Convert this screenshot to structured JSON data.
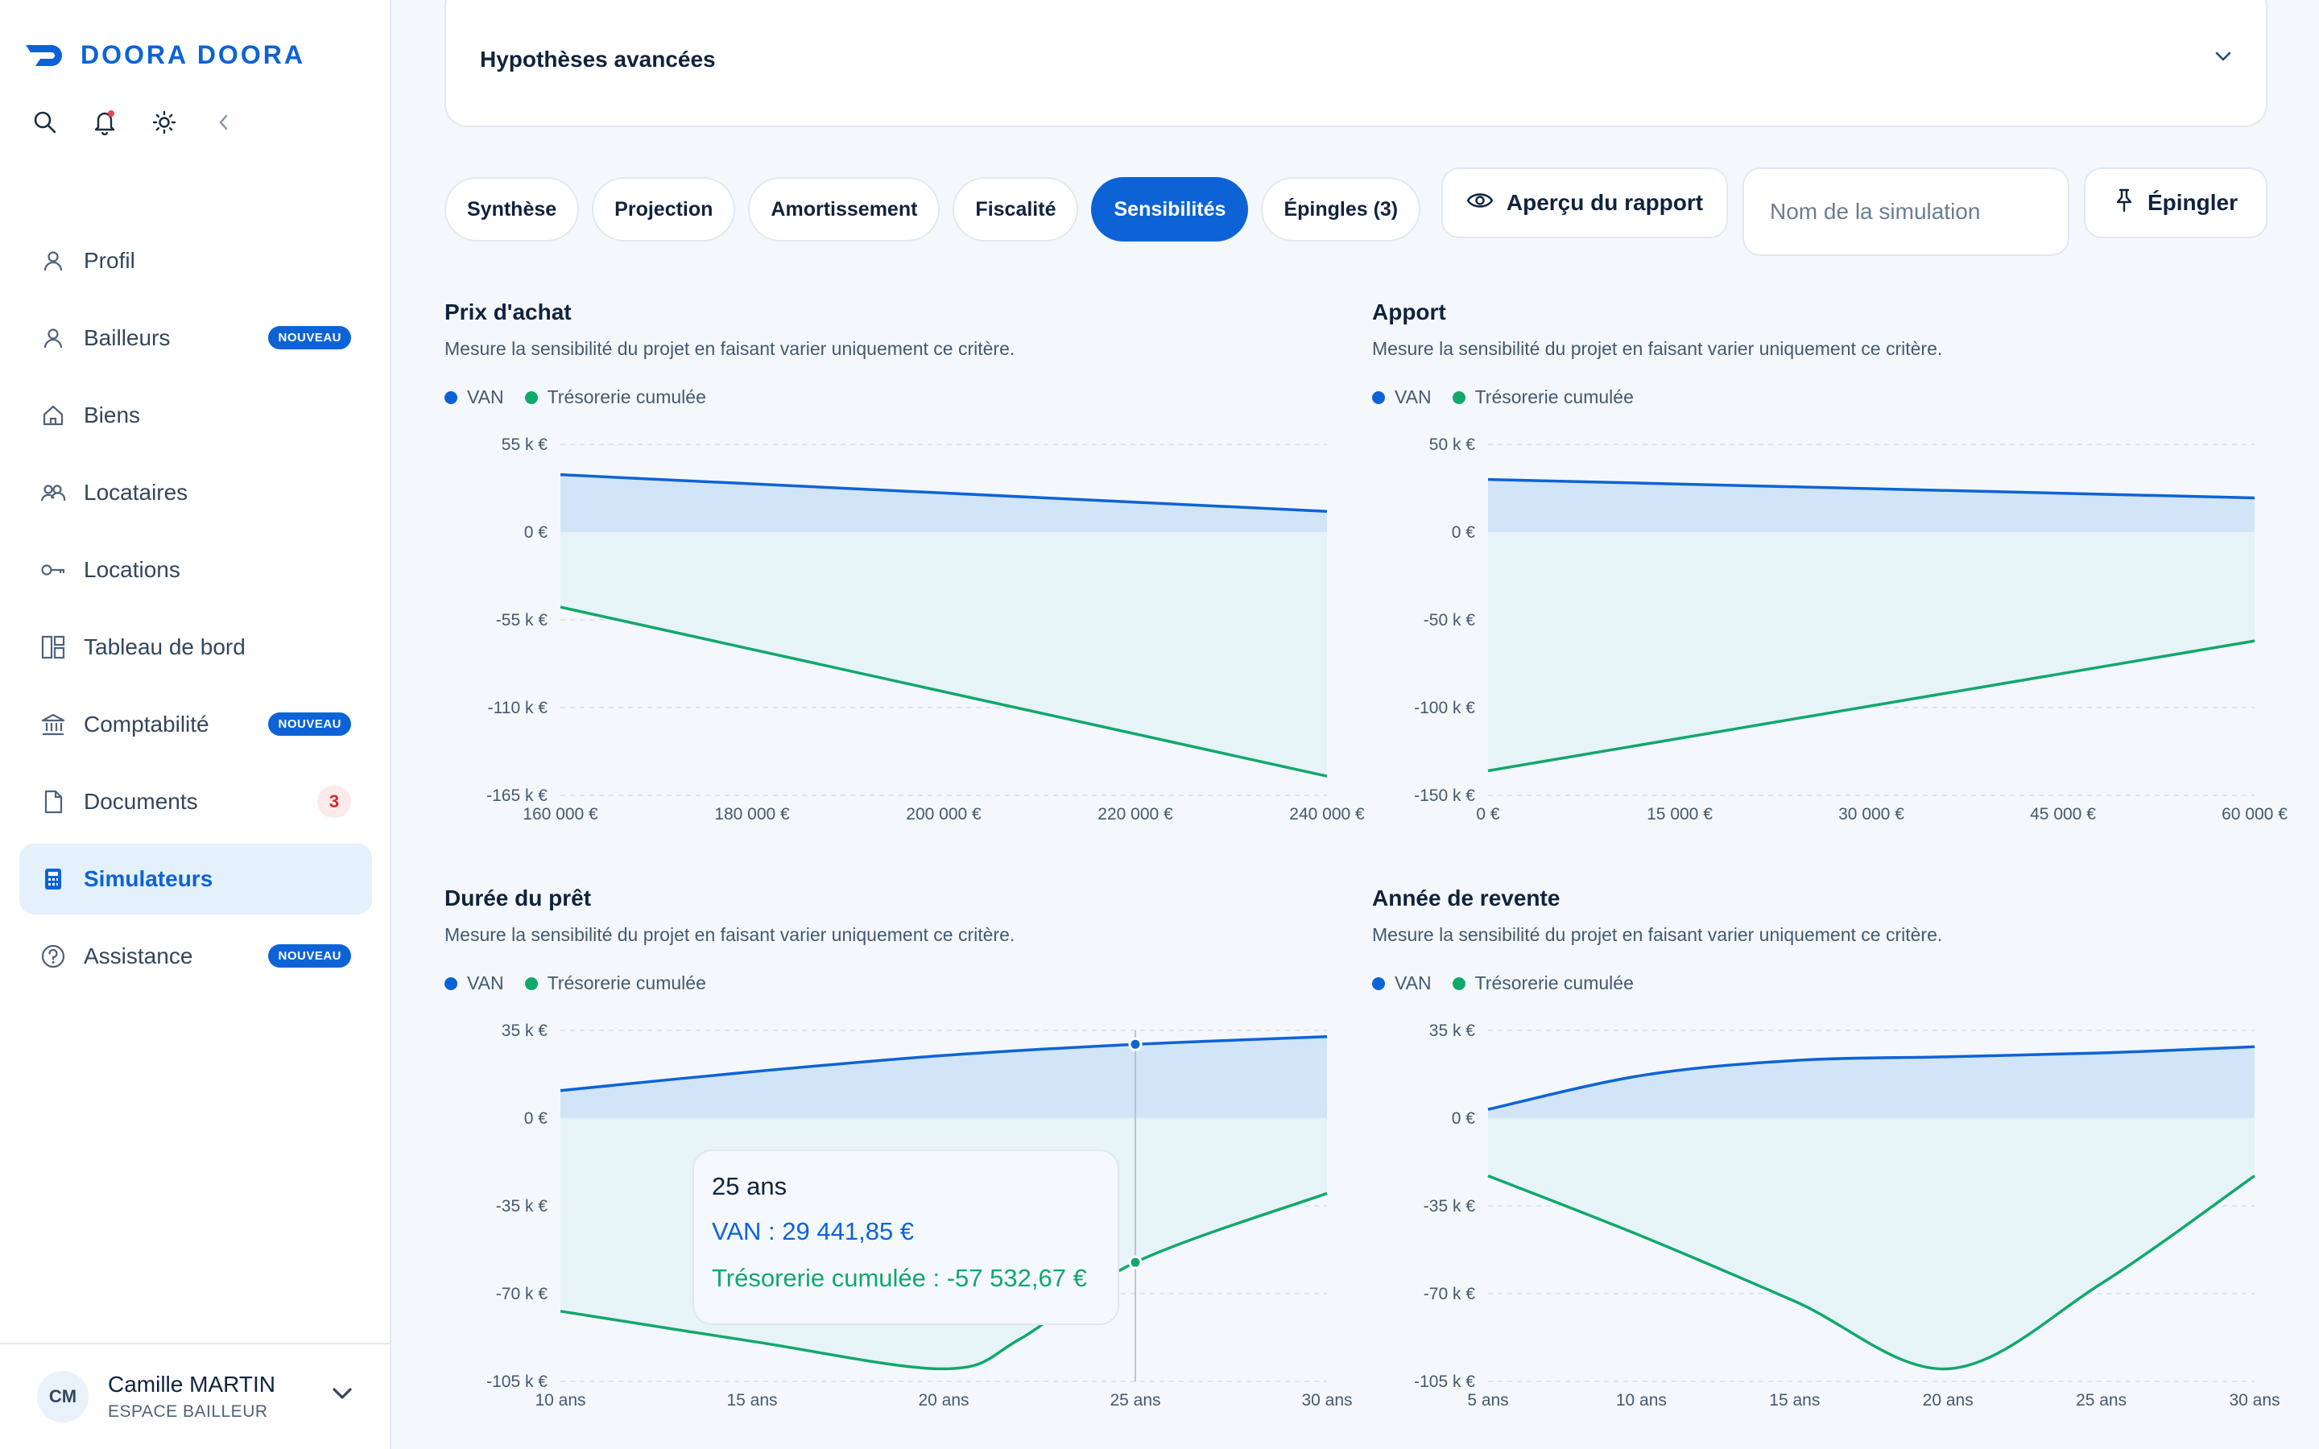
{
  "brand": {
    "name": "DOORA DOORA"
  },
  "nav": {
    "items": [
      {
        "label": "Profil",
        "icon": "user-icon"
      },
      {
        "label": "Bailleurs",
        "icon": "user-icon",
        "badge": "NOUVEAU"
      },
      {
        "label": "Biens",
        "icon": "home-icon"
      },
      {
        "label": "Locataires",
        "icon": "users-icon"
      },
      {
        "label": "Locations",
        "icon": "key-icon"
      },
      {
        "label": "Tableau de bord",
        "icon": "dashboard-icon"
      },
      {
        "label": "Comptabilité",
        "icon": "bank-icon",
        "badge": "NOUVEAU"
      },
      {
        "label": "Documents",
        "icon": "document-icon",
        "count": "3"
      },
      {
        "label": "Simulateurs",
        "icon": "calculator-icon",
        "active": true
      },
      {
        "label": "Assistance",
        "icon": "help-icon",
        "badge": "NOUVEAU"
      }
    ]
  },
  "user": {
    "initials": "CM",
    "name": "Camille MARTIN",
    "role": "ESPACE BAILLEUR"
  },
  "accordion": {
    "title": "Hypothèses avancées"
  },
  "tabs": [
    {
      "label": "Synthèse"
    },
    {
      "label": "Projection"
    },
    {
      "label": "Amortissement"
    },
    {
      "label": "Fiscalité"
    },
    {
      "label": "Sensibilités",
      "active": true
    },
    {
      "label": "Épingles (3)"
    }
  ],
  "actions": {
    "preview_label": "Aperçu du rapport",
    "sim_name_placeholder": "Nom de la simulation",
    "pin_label": "Épingler"
  },
  "colors": {
    "accent": "#0d63d6",
    "van": "#0d63d6",
    "treso": "#11a86b"
  },
  "legend": {
    "van": "VAN",
    "treso": "Trésorerie cumulée"
  },
  "description": "Mesure la sensibilité du projet en faisant varier uniquement ce critère.",
  "tooltip": {
    "title": "25 ans",
    "van": "VAN : 29 441,85 €",
    "treso": "Trésorerie cumulée : -57 532,67 €"
  },
  "chart_data": [
    {
      "type": "area",
      "title": "Prix d'achat",
      "x": [
        160000,
        240000
      ],
      "x_ticks": [
        "160 000 €",
        "180 000 €",
        "200 000 €",
        "220 000 €",
        "240 000 €"
      ],
      "y_ticks": [
        "55 k €",
        "0 €",
        "-55 k €",
        "-110 k €",
        "-165 k €"
      ],
      "ylim": [
        -165000,
        55000
      ],
      "series": [
        {
          "name": "VAN",
          "x": [
            160000,
            240000
          ],
          "values": [
            36000,
            13000
          ]
        },
        {
          "name": "Trésorerie cumulée",
          "x": [
            160000,
            240000
          ],
          "values": [
            -47000,
            -153000
          ]
        }
      ]
    },
    {
      "type": "area",
      "title": "Apport",
      "x": [
        0,
        60000
      ],
      "x_ticks": [
        "0 €",
        "15 000 €",
        "30 000 €",
        "45 000 €",
        "60 000 €"
      ],
      "y_ticks": [
        "50 k €",
        "0 €",
        "-50 k €",
        "-100 k €",
        "-150 k €"
      ],
      "ylim": [
        -150000,
        50000
      ],
      "series": [
        {
          "name": "VAN",
          "x": [
            0,
            60000
          ],
          "values": [
            30000,
            19500
          ]
        },
        {
          "name": "Trésorerie cumulée",
          "x": [
            0,
            60000
          ],
          "values": [
            -136000,
            -62000
          ]
        }
      ]
    },
    {
      "type": "area",
      "title": "Durée du prêt",
      "x": [
        10,
        30
      ],
      "x_ticks": [
        "10 ans",
        "15 ans",
        "20 ans",
        "25 ans",
        "30 ans"
      ],
      "y_ticks": [
        "35 k €",
        "0 €",
        "-35 k €",
        "-70 k €",
        "-105 k €"
      ],
      "ylim": [
        -105000,
        35000
      ],
      "series": [
        {
          "name": "VAN",
          "x": [
            10,
            15,
            20,
            25,
            30
          ],
          "values": [
            11000,
            18500,
            25000,
            29442,
            32500
          ]
        },
        {
          "name": "Trésorerie cumulée",
          "x": [
            10,
            15,
            20,
            22,
            25,
            30
          ],
          "values": [
            -77000,
            -89000,
            -100000,
            -88000,
            -57533,
            -30000
          ]
        }
      ],
      "highlight_x": 25
    },
    {
      "type": "area",
      "title": "Année de revente",
      "x": [
        5,
        30
      ],
      "x_ticks": [
        "5 ans",
        "10 ans",
        "15 ans",
        "20 ans",
        "25 ans",
        "30 ans"
      ],
      "y_ticks": [
        "35 k €",
        "0 €",
        "-35 k €",
        "-70 k €",
        "-105 k €"
      ],
      "ylim": [
        -105000,
        35000
      ],
      "series": [
        {
          "name": "VAN",
          "x": [
            5,
            10,
            15,
            20,
            25,
            30
          ],
          "values": [
            3500,
            17000,
            23000,
            24500,
            26000,
            28500
          ]
        },
        {
          "name": "Trésorerie cumulée",
          "x": [
            5,
            10,
            15,
            20,
            25,
            30
          ],
          "values": [
            -23000,
            -47000,
            -73000,
            -100000,
            -66000,
            -23000
          ]
        }
      ]
    }
  ]
}
